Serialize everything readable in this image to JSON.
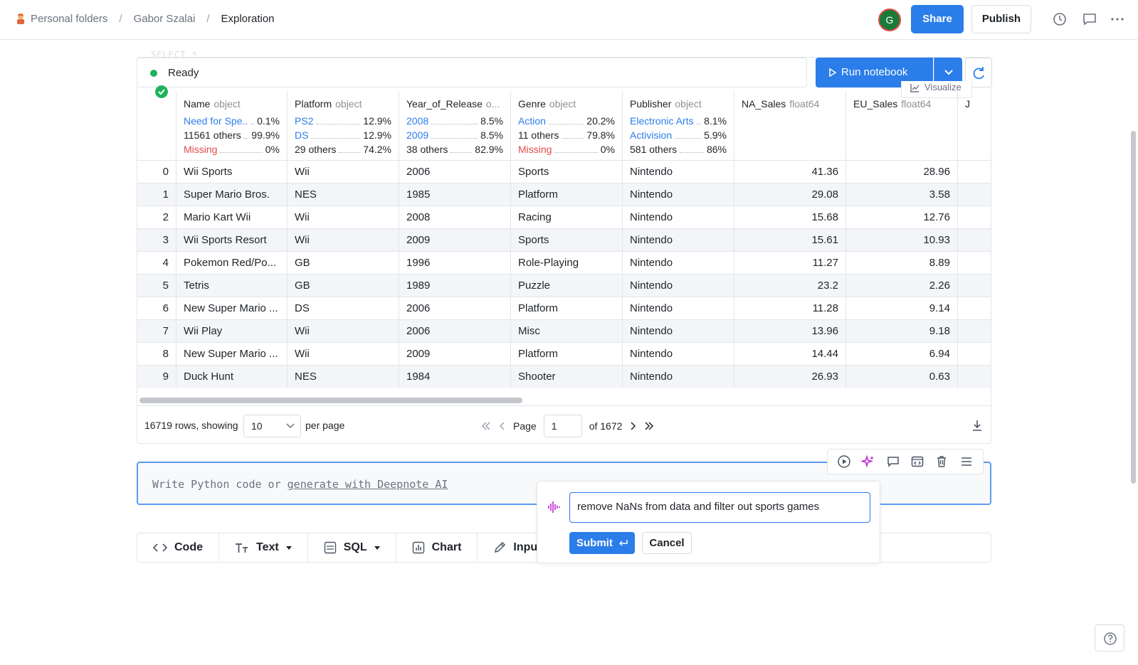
{
  "breadcrumb": {
    "items": [
      "Personal folders",
      "Gabor Szalai",
      "Exploration"
    ]
  },
  "header": {
    "avatar_initial": "G",
    "share_label": "Share",
    "publish_label": "Publish"
  },
  "cell": {
    "ghost_query": "SELECT *",
    "status": "Ready",
    "run_label": "Run notebook",
    "visualize_label": "Visualize"
  },
  "table": {
    "columns": [
      {
        "name": "Name",
        "dtype": "object",
        "stats": [
          {
            "label": "Need for Spe...",
            "pct": "0.1%",
            "kind": "blue"
          },
          {
            "label": "11561 others",
            "pct": "99.9%",
            "kind": "gray"
          },
          {
            "label": "Missing",
            "pct": "0%",
            "kind": "red"
          }
        ]
      },
      {
        "name": "Platform",
        "dtype": "object",
        "stats": [
          {
            "label": "PS2",
            "pct": "12.9%",
            "kind": "blue"
          },
          {
            "label": "DS",
            "pct": "12.9%",
            "kind": "blue"
          },
          {
            "label": "29 others",
            "pct": "74.2%",
            "kind": "gray"
          }
        ]
      },
      {
        "name": "Year_of_Release",
        "dtype": "o...",
        "stats": [
          {
            "label": "2008",
            "pct": "8.5%",
            "kind": "blue"
          },
          {
            "label": "2009",
            "pct": "8.5%",
            "kind": "blue"
          },
          {
            "label": "38 others",
            "pct": "82.9%",
            "kind": "gray"
          }
        ]
      },
      {
        "name": "Genre",
        "dtype": "object",
        "stats": [
          {
            "label": "Action",
            "pct": "20.2%",
            "kind": "blue"
          },
          {
            "label": "11 others",
            "pct": "79.8%",
            "kind": "gray"
          },
          {
            "label": "Missing",
            "pct": "0%",
            "kind": "red"
          }
        ]
      },
      {
        "name": "Publisher",
        "dtype": "object",
        "stats": [
          {
            "label": "Electronic Arts",
            "pct": "8.1%",
            "kind": "blue"
          },
          {
            "label": "Activision",
            "pct": "5.9%",
            "kind": "blue"
          },
          {
            "label": "581 others",
            "pct": "86%",
            "kind": "gray"
          }
        ]
      },
      {
        "name": "NA_Sales",
        "dtype": "float64",
        "stats": []
      },
      {
        "name": "EU_Sales",
        "dtype": "float64",
        "stats": []
      },
      {
        "name": "J",
        "dtype": "",
        "stats": []
      }
    ],
    "rows": [
      [
        "0",
        "Wii Sports",
        "Wii",
        "2006",
        "Sports",
        "Nintendo",
        "41.36",
        "28.96"
      ],
      [
        "1",
        "Super Mario Bros.",
        "NES",
        "1985",
        "Platform",
        "Nintendo",
        "29.08",
        "3.58"
      ],
      [
        "2",
        "Mario Kart Wii",
        "Wii",
        "2008",
        "Racing",
        "Nintendo",
        "15.68",
        "12.76"
      ],
      [
        "3",
        "Wii Sports Resort",
        "Wii",
        "2009",
        "Sports",
        "Nintendo",
        "15.61",
        "10.93"
      ],
      [
        "4",
        "Pokemon Red/Po...",
        "GB",
        "1996",
        "Role-Playing",
        "Nintendo",
        "11.27",
        "8.89"
      ],
      [
        "5",
        "Tetris",
        "GB",
        "1989",
        "Puzzle",
        "Nintendo",
        "23.2",
        "2.26"
      ],
      [
        "6",
        "New Super Mario ...",
        "DS",
        "2006",
        "Platform",
        "Nintendo",
        "11.28",
        "9.14"
      ],
      [
        "7",
        "Wii Play",
        "Wii",
        "2006",
        "Misc",
        "Nintendo",
        "13.96",
        "9.18"
      ],
      [
        "8",
        "New Super Mario ...",
        "Wii",
        "2009",
        "Platform",
        "Nintendo",
        "14.44",
        "6.94"
      ],
      [
        "9",
        "Duck Hunt",
        "NES",
        "1984",
        "Shooter",
        "Nintendo",
        "26.93",
        "0.63"
      ]
    ]
  },
  "footer": {
    "rows_text": "16719 rows, showing",
    "page_size": "10",
    "per_page": "per page",
    "page_label": "Page",
    "page_value": "1",
    "of_pages": "of 1672"
  },
  "code_cell": {
    "placeholder_prefix": "Write Python code or ",
    "placeholder_link": "generate with Deepnote AI"
  },
  "add_bar": [
    "Code",
    "Text",
    "SQL",
    "Chart",
    "Input"
  ],
  "ai_prompt": {
    "value": "remove NaNs from data and filter out sports games",
    "submit_label": "Submit",
    "cancel_label": "Cancel"
  },
  "colors": {
    "accent": "#2b7de9",
    "ready": "#1eb35a",
    "missing": "#e04b4b",
    "ai": "#c026d3"
  }
}
